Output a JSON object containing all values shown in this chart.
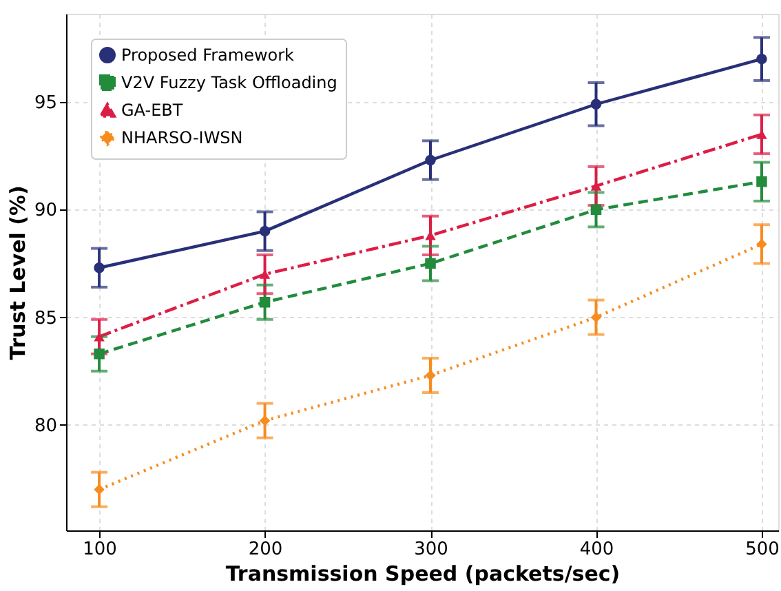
{
  "chart_data": {
    "type": "line",
    "xlabel": "Transmission Speed (packets/sec)",
    "ylabel": "Trust Level (%)",
    "x": [
      100,
      200,
      300,
      400,
      500
    ],
    "series": [
      {
        "name": "Proposed Framework",
        "color": "#283078",
        "marker": "circle",
        "line_style": "solid",
        "values": [
          87.3,
          89.0,
          92.3,
          94.9,
          97.0
        ],
        "errors": [
          0.9,
          0.9,
          0.9,
          1.0,
          1.0
        ]
      },
      {
        "name": "V2V Fuzzy Task Offloading",
        "color": "#228b3c",
        "marker": "square",
        "line_style": "dashed",
        "values": [
          83.3,
          85.7,
          87.5,
          90.0,
          91.3
        ],
        "errors": [
          0.8,
          0.8,
          0.8,
          0.8,
          0.9
        ]
      },
      {
        "name": "GA-EBT",
        "color": "#dc1e46",
        "marker": "triangle",
        "line_style": "dashdot",
        "values": [
          84.1,
          87.0,
          88.8,
          91.1,
          93.5
        ],
        "errors": [
          0.8,
          0.9,
          0.9,
          0.9,
          0.9
        ]
      },
      {
        "name": "NHARSO-IWSN",
        "color": "#f78c1e",
        "marker": "diamond",
        "line_style": "dotted",
        "values": [
          77.0,
          80.2,
          82.3,
          85.0,
          88.4
        ],
        "errors": [
          0.8,
          0.8,
          0.8,
          0.8,
          0.9
        ]
      }
    ],
    "xlim": [
      80,
      510
    ],
    "xticks": [
      100,
      200,
      300,
      400,
      500
    ],
    "ylim": [
      75.1,
      99.1
    ],
    "yticks": [
      80,
      85,
      90,
      95
    ],
    "grid": true,
    "legend": "top left"
  }
}
